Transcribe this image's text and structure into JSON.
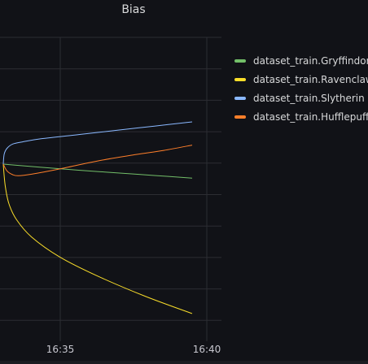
{
  "panel": {
    "title": "Bias"
  },
  "colors": {
    "background": "#111217",
    "grid": "#2c2d33",
    "text": "#c7c7cf"
  },
  "chart_data": {
    "type": "line",
    "title": "Bias",
    "xlabel": "",
    "ylabel": "",
    "x_ticks": [
      "16:35",
      "16:40"
    ],
    "grid": true,
    "legend_position": "right",
    "series": [
      {
        "name": "dataset_train.Gryffindor",
        "color": "#73bf69",
        "points": [
          [
            0.0,
            0.0
          ],
          [
            0.05,
            -0.015
          ],
          [
            0.2,
            -0.06
          ],
          [
            0.4,
            -0.115
          ],
          [
            0.6,
            -0.165
          ],
          [
            0.8,
            -0.215
          ],
          [
            1.0,
            -0.265
          ]
        ]
      },
      {
        "name": "dataset_train.Ravenclaw",
        "color": "#fade2a",
        "points": [
          [
            0.0,
            0.0
          ],
          [
            0.01,
            -0.4
          ],
          [
            0.03,
            -0.75
          ],
          [
            0.07,
            -1.05
          ],
          [
            0.15,
            -1.38
          ],
          [
            0.3,
            -1.76
          ],
          [
            0.5,
            -2.12
          ],
          [
            0.75,
            -2.5
          ],
          [
            1.0,
            -2.83
          ]
        ]
      },
      {
        "name": "dataset_train.Slytherin",
        "color": "#8ab8ff",
        "points": [
          [
            0.0,
            0.0
          ],
          [
            0.005,
            0.19
          ],
          [
            0.02,
            0.3
          ],
          [
            0.05,
            0.38
          ],
          [
            0.1,
            0.42
          ],
          [
            0.2,
            0.48
          ],
          [
            0.4,
            0.56
          ],
          [
            0.6,
            0.64
          ],
          [
            0.8,
            0.72
          ],
          [
            1.0,
            0.8
          ]
        ]
      },
      {
        "name": "dataset_train.Hufflepuff",
        "color": "#ff7f2a",
        "points": [
          [
            0.0,
            0.0
          ],
          [
            0.02,
            -0.13
          ],
          [
            0.05,
            -0.2
          ],
          [
            0.08,
            -0.22
          ],
          [
            0.15,
            -0.19
          ],
          [
            0.3,
            -0.09
          ],
          [
            0.5,
            0.06
          ],
          [
            0.7,
            0.18
          ],
          [
            0.85,
            0.26
          ],
          [
            1.0,
            0.36
          ]
        ]
      }
    ]
  }
}
